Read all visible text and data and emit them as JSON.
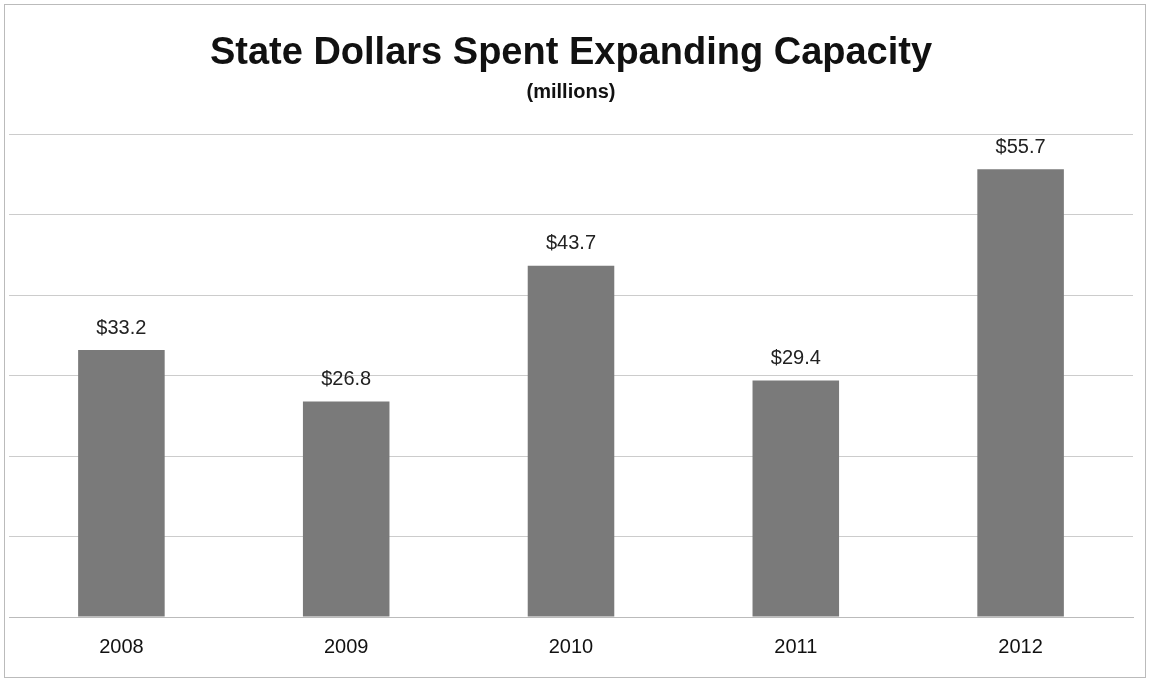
{
  "chart_data": {
    "type": "bar",
    "title": "State Dollars Spent Expanding Capacity",
    "subtitle": "(millions)",
    "categories": [
      "2008",
      "2009",
      "2010",
      "2011",
      "2012"
    ],
    "values": [
      33.2,
      26.8,
      43.7,
      29.4,
      55.7
    ],
    "value_labels": [
      "$33.2",
      "$26.8",
      "$43.7",
      "$29.4",
      "$55.7"
    ],
    "color": "#7a7a7a",
    "ylim": [
      0,
      60
    ],
    "yticks": [
      {
        "value": 0,
        "label": null
      },
      {
        "value": 10,
        "label": null
      },
      {
        "value": 20,
        "label": null
      },
      {
        "value": 30,
        "label": null
      },
      {
        "value": 40,
        "label": null
      },
      {
        "value": 50,
        "label": null
      },
      {
        "value": 60,
        "label": null
      }
    ],
    "grid": "y",
    "legend": false,
    "tick_labels": "x"
  }
}
